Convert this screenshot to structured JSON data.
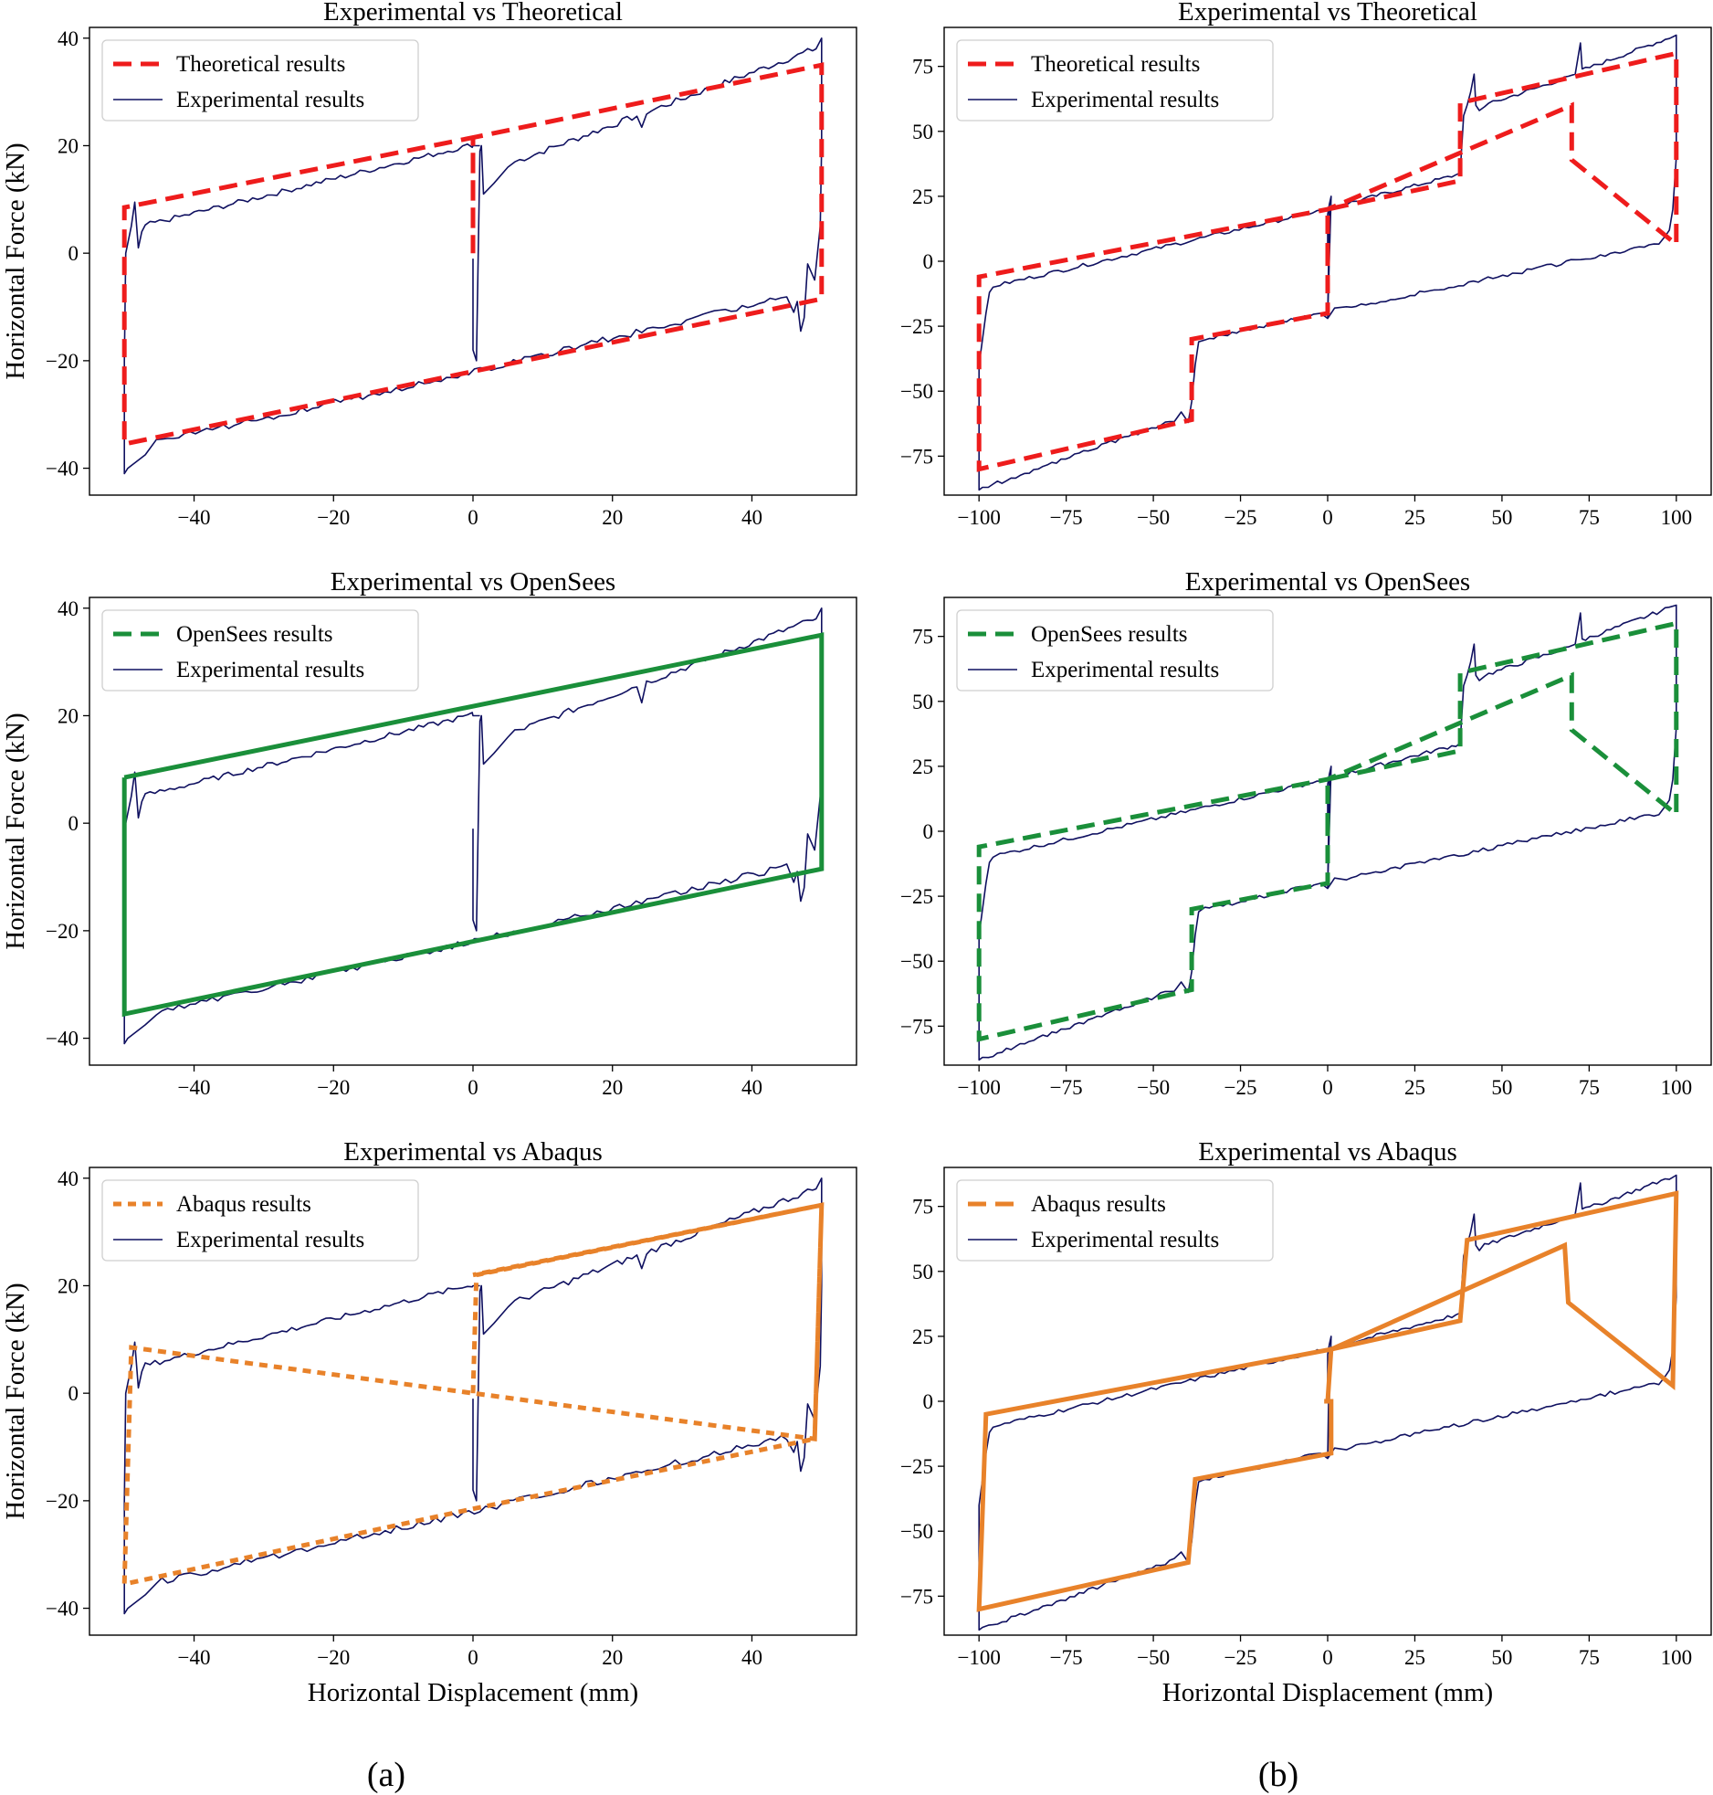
{
  "figure_captions": [
    "(a)",
    "(b)"
  ],
  "colors": {
    "theoretical": "#ee1c1c",
    "opensees": "#1a8f3a",
    "abaqus": "#e8822a",
    "experimental": "#0f1060"
  },
  "chart_data": [
    {
      "id": "a1",
      "type": "line",
      "title": "Experimental vs Theoretical",
      "xlabel": "",
      "ylabel": "Horizontal Force (kN)",
      "xlim": [
        -55,
        55
      ],
      "ylim": [
        -45,
        42
      ],
      "xticks": [
        -40,
        -20,
        0,
        20,
        40
      ],
      "xtick_labels": [
        "−40",
        "−20",
        "0",
        "20",
        "40"
      ],
      "yticks": [
        -40,
        -20,
        0,
        20,
        40
      ],
      "ytick_labels": [
        "−40",
        "−20",
        "0",
        "20",
        "40"
      ],
      "legend": [
        "Theoretical results",
        "Experimental results"
      ],
      "legend_loc": "upper-left",
      "model": {
        "name": "Theoretical results",
        "color_key": "theoretical",
        "style": "dashed",
        "x": [
          0,
          0,
          -50,
          -50,
          0,
          50,
          50,
          0,
          0
        ],
        "y": [
          0,
          21.5,
          8.5,
          -35.5,
          -22,
          -8.5,
          35,
          21.5,
          0
        ]
      }
    },
    {
      "id": "b1",
      "type": "line",
      "title": "Experimental vs Theoretical",
      "xlabel": "",
      "ylabel": "",
      "xlim": [
        -110,
        110
      ],
      "ylim": [
        -90,
        90
      ],
      "xticks": [
        -100,
        -75,
        -50,
        -25,
        0,
        25,
        50,
        75,
        100
      ],
      "xtick_labels": [
        "−100",
        "−75",
        "−50",
        "−25",
        "0",
        "25",
        "50",
        "75",
        "100"
      ],
      "yticks": [
        -75,
        -50,
        -25,
        0,
        25,
        50,
        75
      ],
      "ytick_labels": [
        "−75",
        "−50",
        "−25",
        "0",
        "25",
        "50",
        "75"
      ],
      "legend": [
        "Theoretical results",
        "Experimental results"
      ],
      "legend_loc": "upper-left",
      "model": {
        "name": "Theoretical results",
        "color_key": "theoretical",
        "style": "dashed",
        "x": [
          0,
          0,
          38,
          38,
          100,
          100,
          70,
          70,
          0,
          -100,
          -100,
          -39,
          -39,
          0,
          0
        ],
        "y": [
          0,
          20,
          31,
          61,
          80,
          6.5,
          39,
          60,
          20,
          -6,
          -80,
          -61,
          -30,
          -20,
          0
        ]
      }
    },
    {
      "id": "a2",
      "type": "line",
      "title": "Experimental vs OpenSees",
      "xlabel": "",
      "ylabel": "Horizontal Force (kN)",
      "xlim": [
        -55,
        55
      ],
      "ylim": [
        -45,
        42
      ],
      "xticks": [
        -40,
        -20,
        0,
        20,
        40
      ],
      "xtick_labels": [
        "−40",
        "−20",
        "0",
        "20",
        "40"
      ],
      "yticks": [
        -40,
        -20,
        0,
        20,
        40
      ],
      "ytick_labels": [
        "−40",
        "−20",
        "0",
        "20",
        "40"
      ],
      "legend": [
        "OpenSees results",
        "Experimental results"
      ],
      "legend_loc": "upper-left",
      "model": {
        "name": "OpenSees results",
        "color_key": "opensees",
        "style": "solid",
        "x": [
          -50,
          50,
          50,
          -50,
          -50
        ],
        "y": [
          8.5,
          35,
          -8.5,
          -35.5,
          8.5
        ]
      }
    },
    {
      "id": "b2",
      "type": "line",
      "title": "Experimental vs OpenSees",
      "xlabel": "",
      "ylabel": "",
      "xlim": [
        -110,
        110
      ],
      "ylim": [
        -90,
        90
      ],
      "xticks": [
        -100,
        -75,
        -50,
        -25,
        0,
        25,
        50,
        75,
        100
      ],
      "xtick_labels": [
        "−100",
        "−75",
        "−50",
        "−25",
        "0",
        "25",
        "50",
        "75",
        "100"
      ],
      "yticks": [
        -75,
        -50,
        -25,
        0,
        25,
        50,
        75
      ],
      "ytick_labels": [
        "−75",
        "−50",
        "−25",
        "0",
        "25",
        "50",
        "75"
      ],
      "legend": [
        "OpenSees results",
        "Experimental results"
      ],
      "legend_loc": "upper-left",
      "model": {
        "name": "OpenSees results",
        "color_key": "opensees",
        "style": "dashed",
        "x": [
          0,
          0,
          38,
          38,
          100,
          100,
          70,
          70,
          0,
          -100,
          -100,
          -39,
          -39,
          0,
          0
        ],
        "y": [
          0,
          20,
          31,
          61,
          80,
          6.5,
          39,
          60,
          20,
          -6,
          -80,
          -61,
          -30,
          -20,
          0
        ]
      }
    },
    {
      "id": "a3",
      "type": "line",
      "title": "Experimental vs Abaqus",
      "xlabel": "Horizontal Displacement (mm)",
      "ylabel": "Horizontal Force (kN)",
      "xlim": [
        -55,
        55
      ],
      "ylim": [
        -45,
        42
      ],
      "xticks": [
        -40,
        -20,
        0,
        20,
        40
      ],
      "xtick_labels": [
        "−40",
        "−20",
        "0",
        "20",
        "40"
      ],
      "yticks": [
        -40,
        -20,
        0,
        20,
        40
      ],
      "ytick_labels": [
        "−40",
        "−20",
        "0",
        "20",
        "40"
      ],
      "legend": [
        "Abaqus results",
        "Experimental results"
      ],
      "legend_loc": "upper-left",
      "model": {
        "name": "Abaqus results",
        "color_key": "abaqus",
        "style": "dotted",
        "x": [
          0,
          0.5,
          50,
          49,
          -49,
          -50,
          0,
          49,
          50,
          0
        ],
        "y": [
          0,
          22,
          35,
          -8.5,
          8.5,
          -35.5,
          -21.5,
          -8.5,
          35,
          22
        ]
      }
    },
    {
      "id": "b3",
      "type": "line",
      "title": "Experimental vs Abaqus",
      "xlabel": "Horizontal Displacement (mm)",
      "ylabel": "",
      "xlim": [
        -110,
        110
      ],
      "ylim": [
        -90,
        90
      ],
      "xticks": [
        -100,
        -75,
        -50,
        -25,
        0,
        25,
        50,
        75,
        100
      ],
      "xtick_labels": [
        "−100",
        "−75",
        "−50",
        "−25",
        "0",
        "25",
        "50",
        "75",
        "100"
      ],
      "yticks": [
        -75,
        -50,
        -25,
        0,
        25,
        50,
        75
      ],
      "ytick_labels": [
        "−75",
        "−50",
        "−25",
        "0",
        "25",
        "50",
        "75"
      ],
      "legend": [
        "Abaqus results",
        "Experimental results"
      ],
      "legend_loc": "upper-left",
      "model": {
        "name": "Abaqus results",
        "color_key": "abaqus",
        "style": "solid",
        "x": [
          0,
          1,
          38,
          40,
          100,
          99,
          69,
          68,
          1,
          -98,
          -100,
          -40,
          -38,
          1,
          1,
          -1
        ],
        "y": [
          0,
          20,
          31,
          62,
          80,
          6,
          38,
          60,
          20,
          -5,
          -80,
          -62,
          -30,
          -20,
          0,
          0
        ]
      }
    }
  ]
}
